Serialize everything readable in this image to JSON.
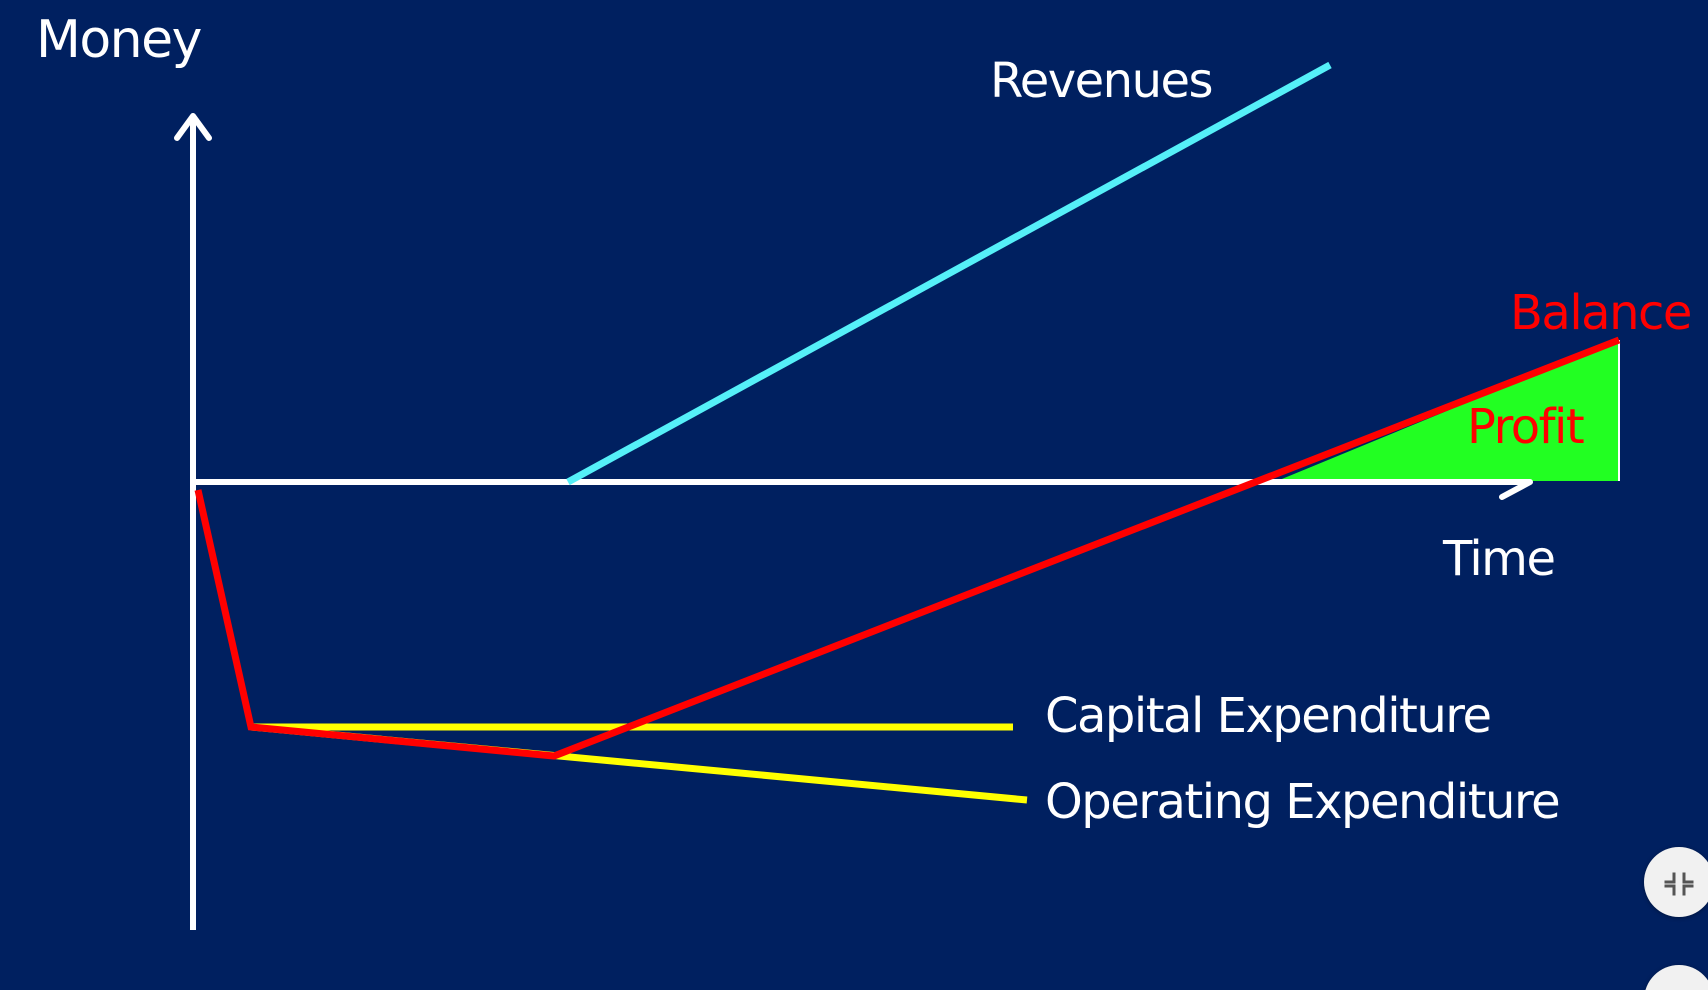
{
  "labels": {
    "y_axis": "Money",
    "x_axis": "Time",
    "revenues": "Revenues",
    "balance": "Balance",
    "profit": "Profit",
    "capex": "Capital Expenditure",
    "opex": "Operating Expenditure"
  },
  "colors": {
    "background": "#002060",
    "axis": "#ffffff",
    "revenues": "#55f0f8",
    "balance": "#ff0000",
    "expenditure": "#ffff00",
    "profit_fill": "#22ff22",
    "label_text": "#ffffff",
    "label_accent": "#ff0000"
  },
  "controls": {
    "exit_fullscreen_icon": "collapse-icon"
  }
}
